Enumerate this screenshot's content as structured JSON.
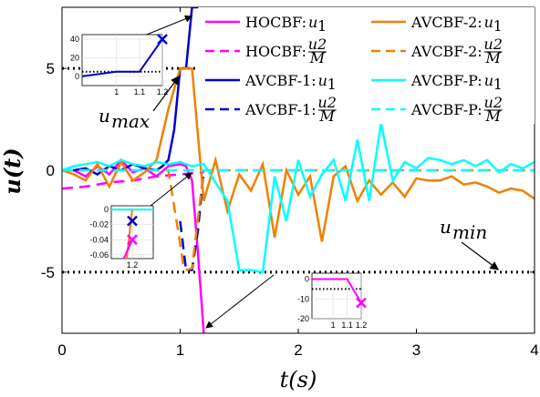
{
  "chart_data": {
    "type": "line",
    "xlabel": "t(s)",
    "ylabel": "u(t)",
    "xlim": [
      0,
      4
    ],
    "ylim": [
      -8,
      8
    ],
    "xticks": [
      "0",
      "1",
      "2",
      "3",
      "4"
    ],
    "yticks": [
      "5",
      "0",
      "-5"
    ],
    "grid": false,
    "legend_position": "top-right",
    "limits": [
      {
        "name": "u_max",
        "y": 5,
        "label": "u",
        "label_sub": "max"
      },
      {
        "name": "u_min",
        "y": -5,
        "label": "u",
        "label_sub": "min"
      }
    ],
    "series": [
      {
        "name": "HOCBF:u1",
        "legend_label": "HOCBF:",
        "legend_sym": "u",
        "legend_sub": "1",
        "color": "#ff00ff",
        "dash": "solid",
        "x": [
          0,
          0.1,
          0.2,
          0.3,
          0.4,
          0.5,
          0.6,
          0.7,
          0.8,
          0.9,
          1.0,
          1.05,
          1.1,
          1.15,
          1.2
        ],
        "y": [
          0,
          0,
          -0.3,
          0.2,
          -0.2,
          0.5,
          -0.1,
          0.1,
          -0.3,
          0.2,
          0.3,
          0.2,
          -0.5,
          -4,
          -8
        ]
      },
      {
        "name": "HOCBF:u2/M",
        "legend_label": "HOCBF:",
        "legend_frac": [
          "u2",
          "M"
        ],
        "color": "#ff00ff",
        "dash": "dashed",
        "x": [
          0,
          0.2,
          0.4,
          0.6,
          0.8,
          1.0,
          1.1,
          1.2
        ],
        "y": [
          -0.9,
          -0.8,
          -0.6,
          -0.5,
          -0.3,
          -0.2,
          -0.15,
          -0.1
        ]
      },
      {
        "name": "AVCBF-1:u1",
        "legend_label": "AVCBF-1:",
        "legend_sym": "u",
        "legend_sub": "1",
        "color": "#0000cc",
        "dash": "solid",
        "x": [
          0,
          0.1,
          0.2,
          0.3,
          0.4,
          0.5,
          0.6,
          0.7,
          0.8,
          0.85,
          0.9,
          0.95,
          1.0,
          1.05,
          1.1,
          1.15
        ],
        "y": [
          0,
          0,
          0.1,
          -0.2,
          0.2,
          0,
          0.3,
          0.1,
          0,
          0.2,
          0.5,
          2,
          5,
          5,
          8,
          8
        ]
      },
      {
        "name": "AVCBF-1:u2/M",
        "legend_label": "AVCBF-1:",
        "legend_frac": [
          "u2",
          "M"
        ],
        "color": "#0000cc",
        "dash": "dashed",
        "x": [
          1.0,
          1.05,
          1.1,
          1.15,
          1.2
        ],
        "y": [
          -2.5,
          -4.9,
          -4.9,
          -3,
          0
        ]
      },
      {
        "name": "AVCBF-2:u1",
        "legend_label": "AVCBF-2:",
        "legend_sym": "u",
        "legend_sub": "1",
        "color": "#f08000",
        "dash": "solid",
        "x": [
          0,
          0.1,
          0.2,
          0.3,
          0.4,
          0.5,
          0.6,
          0.7,
          0.8,
          0.9,
          1.0,
          1.1,
          1.2,
          1.3,
          1.4,
          1.5,
          1.6,
          1.7,
          1.8,
          1.9,
          2.0,
          2.1,
          2.2,
          2.3,
          2.4,
          2.5,
          2.6,
          2.7,
          2.8,
          2.9,
          3.0,
          3.1,
          3.2,
          3.3,
          3.4,
          3.5,
          3.6,
          3.7,
          3.8,
          3.9,
          4.0
        ],
        "y": [
          0,
          -0.2,
          -0.5,
          0.3,
          -0.8,
          0.4,
          -0.5,
          -0.1,
          0.5,
          3,
          5,
          5,
          -1.5,
          0.5,
          -2,
          -0.2,
          -1,
          0.3,
          -3.3,
          0,
          -1.2,
          -0.3,
          -3.5,
          -0.3,
          0.2,
          -1.5,
          -0.5,
          -1.2,
          -0.6,
          -1.3,
          -0.4,
          -0.5,
          -0.5,
          -0.3,
          -0.7,
          -0.6,
          -0.8,
          -1.1,
          -0.9,
          -1.0,
          -1.4
        ]
      },
      {
        "name": "AVCBF-2:u2/M",
        "legend_label": "AVCBF-2:",
        "legend_frac": [
          "u2",
          "M"
        ],
        "color": "#f08000",
        "dash": "dashed",
        "x": [
          0,
          0.5,
          0.8,
          0.9,
          1.0,
          1.03,
          1.06,
          1.1,
          1.2,
          1.5,
          2.0,
          2.5,
          3.0,
          3.5,
          4.0
        ],
        "y": [
          0,
          0,
          0,
          0,
          -3.6,
          -4.8,
          -4.9,
          -4.8,
          0,
          0,
          0,
          0,
          0,
          0,
          0
        ]
      },
      {
        "name": "AVCBF-P:u1",
        "legend_label": "AVCBF-P:",
        "legend_sym": "u",
        "legend_sub": "1",
        "color": "#00ffff",
        "dash": "solid",
        "x": [
          0,
          0.1,
          0.2,
          0.3,
          0.4,
          0.5,
          0.6,
          0.7,
          0.8,
          0.9,
          1.0,
          1.1,
          1.2,
          1.3,
          1.4,
          1.5,
          1.6,
          1.7,
          1.8,
          1.9,
          2.0,
          2.1,
          2.2,
          2.3,
          2.4,
          2.5,
          2.6,
          2.7,
          2.8,
          2.9,
          3.0,
          3.1,
          3.2,
          3.3,
          3.4,
          3.5,
          3.6,
          3.7,
          3.8,
          3.9,
          4.0
        ],
        "y": [
          0,
          0.2,
          0.3,
          0.4,
          0.2,
          0.5,
          0.3,
          0.2,
          0.4,
          0.3,
          0.4,
          0.2,
          0.3,
          -0.6,
          -1.5,
          -4.9,
          -4.9,
          -5,
          -0.3,
          -2.5,
          0.5,
          -1.3,
          -0.2,
          0.5,
          -1.5,
          1.5,
          -1.5,
          2.3,
          -0.5,
          0.4,
          0.1,
          0.6,
          0.5,
          0.3,
          0.5,
          0.2,
          0.5,
          -0.1,
          0.3,
          0.1,
          0.4
        ]
      },
      {
        "name": "AVCBF-P:u2/M",
        "legend_label": "AVCBF-P:",
        "legend_frac": [
          "u2",
          "M"
        ],
        "color": "#00ffff",
        "dash": "dashed",
        "x": [
          0,
          1.0,
          2.0,
          3.0,
          4.0
        ],
        "y": [
          0,
          0,
          0,
          0,
          0
        ]
      }
    ],
    "insets": [
      {
        "name": "inset-top",
        "xlim": [
          0.85,
          1.2
        ],
        "ylim": [
          -10,
          45
        ],
        "xticks": [
          1,
          1.1,
          1.2
        ],
        "yticks": [
          0,
          20,
          40
        ],
        "xtick_labels": [
          "1",
          "1.1",
          "1.2"
        ],
        "ytick_labels": [
          "0",
          "20",
          "40"
        ],
        "dotted_y": 5,
        "line": {
          "color": "#0000cc",
          "x": [
            0.85,
            1.0,
            1.1,
            1.2
          ],
          "y": [
            0,
            5,
            5,
            40
          ]
        },
        "marker": {
          "x": 1.2,
          "y": 40,
          "color": "#0000cc"
        }
      },
      {
        "name": "inset-mid",
        "xlim": [
          1.185,
          1.215
        ],
        "ylim": [
          -0.065,
          0.005
        ],
        "xticks": [
          1.2
        ],
        "yticks": [
          0,
          -0.02,
          -0.04,
          -0.06
        ],
        "xtick_labels": [
          "1.2"
        ],
        "ytick_labels": [
          "0",
          "-0.02",
          "-0.04",
          "-0.06"
        ],
        "dotted_y": 0,
        "lines": [
          {
            "color": "#f08000",
            "x": [
              1.196,
              1.2
            ],
            "y": [
              -0.065,
              0
            ]
          },
          {
            "color": "#ff00ff",
            "x": [
              1.194,
              1.2
            ],
            "y": [
              -0.065,
              -0.04
            ]
          },
          {
            "color": "#00ffff",
            "x": [
              1.185,
              1.215
            ],
            "y": [
              0,
              0
            ]
          }
        ],
        "markers": [
          {
            "x": 1.2,
            "y": -0.015,
            "color": "#0000cc"
          },
          {
            "x": 1.2,
            "y": -0.04,
            "color": "#ff00ff"
          }
        ]
      },
      {
        "name": "inset-bottom",
        "xlim": [
          0.85,
          1.2
        ],
        "ylim": [
          -20,
          3
        ],
        "xticks": [
          1,
          1.1,
          1.2
        ],
        "yticks": [
          0,
          -10,
          -20
        ],
        "xtick_labels": [
          "1",
          "1.1",
          "1.2"
        ],
        "ytick_labels": [
          "0",
          "-10",
          "-20"
        ],
        "dotted_y": -5,
        "line": {
          "color": "#ff00ff",
          "x": [
            0.85,
            1.1,
            1.2
          ],
          "y": [
            0,
            0,
            -12
          ]
        },
        "marker": {
          "x": 1.2,
          "y": -12,
          "color": "#ff00ff"
        }
      }
    ]
  }
}
